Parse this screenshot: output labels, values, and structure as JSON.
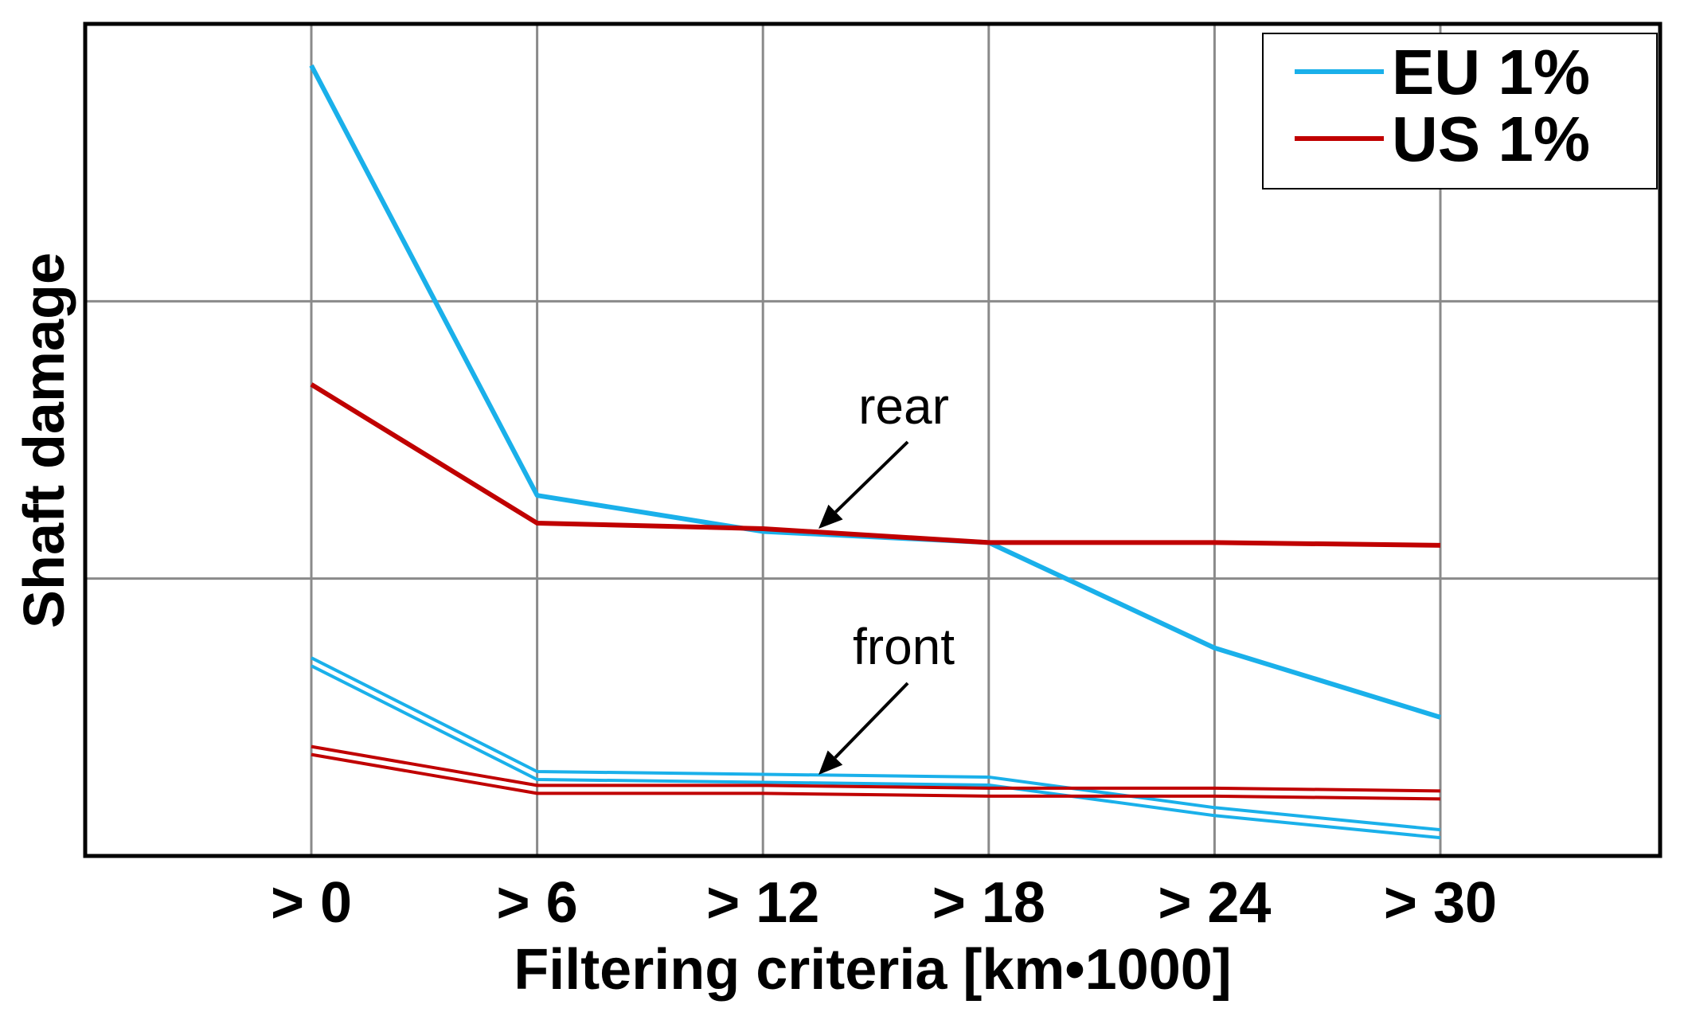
{
  "chart_data": {
    "type": "line",
    "title": "",
    "xlabel": "Filtering criteria [km•1000]",
    "ylabel": "Shaft damage",
    "categories": [
      "> 0",
      "> 6",
      "> 12",
      "> 18",
      "> 24",
      "> 30"
    ],
    "ylim": [
      0,
      3
    ],
    "yticks_labeled": false,
    "grid": true,
    "legend_position": "top-right",
    "legend": [
      {
        "name": "EU 1%",
        "color": "#1ab0ea"
      },
      {
        "name": "US 1%",
        "color": "#c00000"
      }
    ],
    "annotations": [
      "rear",
      "front"
    ],
    "series": [
      {
        "name": "EU 1%",
        "group": "rear",
        "style": "single",
        "color": "#1ab0ea",
        "values": [
          2.85,
          1.3,
          1.17,
          1.13,
          0.75,
          0.5
        ]
      },
      {
        "name": "US 1%",
        "group": "rear",
        "style": "single",
        "color": "#c00000",
        "values": [
          1.7,
          1.2,
          1.18,
          1.13,
          1.13,
          1.12
        ]
      },
      {
        "name": "EU 1%",
        "group": "front",
        "style": "double",
        "color": "#1ab0ea",
        "values": [
          0.7,
          0.29,
          0.28,
          0.27,
          0.16,
          0.08
        ]
      },
      {
        "name": "US 1%",
        "group": "front",
        "style": "double",
        "color": "#c00000",
        "values": [
          0.38,
          0.24,
          0.24,
          0.23,
          0.23,
          0.22
        ]
      }
    ]
  }
}
